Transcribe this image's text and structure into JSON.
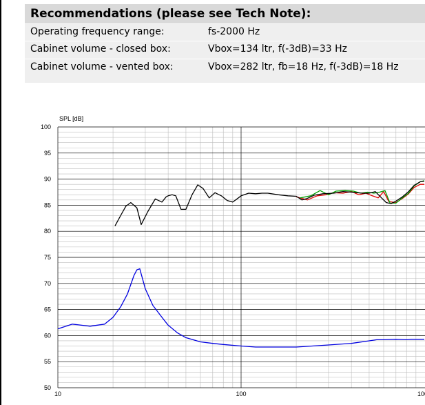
{
  "recommendations": {
    "title": "Recommendations (please see Tech Note):",
    "rows": [
      {
        "label": "Operating frequency range:",
        "value": "fs-2000 Hz"
      },
      {
        "label": "Cabinet volume - closed box:",
        "value": "Vbox=134 ltr, f(-3dB)=33 Hz"
      },
      {
        "label": "Cabinet volume - vented box:",
        "value": "Vbox=282 ltr, fb=18 Hz, f(-3dB)=18 Hz"
      }
    ]
  },
  "colors": {
    "black_curve": "#000000",
    "red_curve": "#e00000",
    "green_curve": "#00a000",
    "blue_curve": "#0000e0",
    "grid_major": "#000000",
    "grid_minor": "#bdbdbd",
    "rec_title_bg": "#d9d9d9",
    "rec_row_bg": "#efefef"
  },
  "chart_data": {
    "type": "line",
    "ylabel": "SPL [dB]",
    "xscale": "log",
    "xlim": [
      10,
      1000
    ],
    "ylim": [
      50,
      100
    ],
    "y_ticks": [
      50,
      55,
      60,
      65,
      70,
      75,
      80,
      85,
      90,
      95,
      100
    ],
    "x_ticks": [
      10,
      100
    ],
    "grid": true,
    "series": [
      {
        "color": "blue",
        "x": [
          10,
          12,
          15,
          18,
          20,
          22,
          24,
          26,
          27,
          28,
          30,
          33,
          37,
          40,
          45,
          50,
          60,
          70,
          80,
          100,
          120,
          150,
          200,
          300,
          400,
          500,
          550,
          600,
          700,
          800,
          850,
          900,
          1000
        ],
        "y": [
          61.3,
          62.2,
          61.8,
          62.2,
          63.5,
          65.5,
          68.0,
          71.5,
          72.6,
          72.8,
          69.0,
          65.8,
          63.5,
          62.0,
          60.5,
          59.6,
          58.8,
          58.5,
          58.3,
          58.0,
          57.8,
          57.8,
          57.8,
          58.2,
          58.5,
          59.0,
          59.2,
          59.2,
          59.3,
          59.2,
          59.3,
          59.3,
          59.3
        ]
      },
      {
        "color": "black",
        "x": [
          20.5,
          22,
          23.5,
          25,
          27,
          28.5,
          31,
          34,
          37,
          39,
          40,
          42,
          44,
          47,
          50,
          54,
          58,
          62,
          67,
          72,
          78,
          84,
          90,
          95,
          100,
          110,
          120,
          130,
          140,
          160,
          180,
          200,
          215,
          230,
          250,
          280,
          320,
          360,
          400,
          430,
          460,
          500,
          540,
          580,
          620,
          660,
          700,
          760,
          820,
          880,
          950,
          1000
        ],
        "y": [
          81.0,
          83.0,
          84.8,
          85.5,
          84.5,
          81.3,
          83.8,
          86.2,
          85.6,
          86.6,
          86.8,
          87.0,
          86.8,
          84.2,
          84.2,
          87.0,
          88.9,
          88.2,
          86.4,
          87.4,
          86.8,
          85.9,
          85.6,
          86.2,
          86.8,
          87.3,
          87.2,
          87.3,
          87.3,
          87.0,
          86.8,
          86.7,
          86.0,
          86.3,
          86.9,
          87.2,
          87.3,
          87.6,
          87.5,
          87.4,
          87.3,
          87.3,
          87.6,
          86.5,
          85.5,
          85.3,
          85.8,
          86.6,
          87.6,
          88.8,
          89.5,
          89.6
        ]
      },
      {
        "color": "red",
        "x": [
          200,
          230,
          260,
          290,
          320,
          360,
          400,
          440,
          480,
          520,
          560,
          600,
          640,
          700,
          760,
          820,
          880,
          950,
          1000
        ],
        "y": [
          86.6,
          86.0,
          86.8,
          87.0,
          87.4,
          87.3,
          87.6,
          87.0,
          87.3,
          86.8,
          86.4,
          87.6,
          85.7,
          85.5,
          86.3,
          87.2,
          88.4,
          89.0,
          89.0
        ]
      },
      {
        "color": "green",
        "x": [
          210,
          240,
          270,
          300,
          330,
          370,
          410,
          450,
          490,
          530,
          570,
          610,
          650,
          700,
          760,
          820,
          880,
          950,
          1000
        ],
        "y": [
          86.4,
          86.8,
          87.8,
          87.0,
          87.7,
          87.8,
          87.7,
          87.3,
          87.5,
          87.3,
          87.5,
          87.8,
          85.4,
          85.4,
          86.4,
          87.3,
          88.7,
          89.5,
          89.7
        ]
      }
    ]
  }
}
